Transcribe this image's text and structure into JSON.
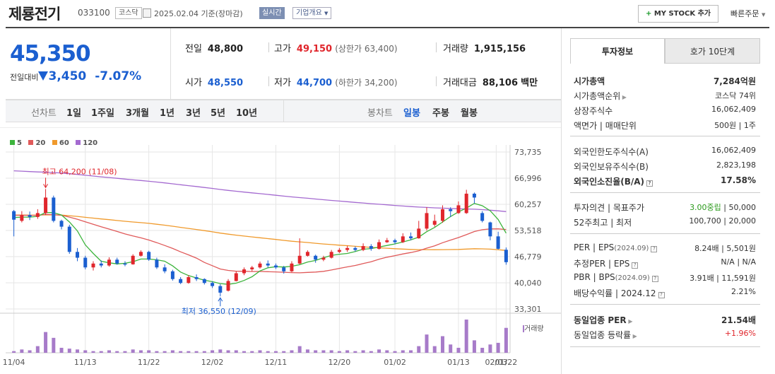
{
  "header": {
    "name": "제룡전기",
    "code": "033100",
    "market": "코스닥",
    "date": "2025.02.04",
    "date_note": "기준(장마감)",
    "live_label": "실시간",
    "corp_label": "기업개요",
    "mystock_label": "MY STOCK 추가",
    "fast_order": "빠른주문"
  },
  "quote": {
    "price": "45,350",
    "diff_label": "전일대비",
    "diff": "3,450",
    "rate": "-7.07%",
    "prev_label": "전일",
    "prev": "48,800",
    "high_label": "고가",
    "high": "49,150",
    "upper_label": "(상한가 63,400)",
    "volume_label": "거래량",
    "volume": "1,915,156",
    "open_label": "시가",
    "open": "48,550",
    "low_label": "저가",
    "low": "44,700",
    "lower_label": "(하한가 34,200)",
    "amount_label": "거래대금",
    "amount": "88,106",
    "amount_unit": "백만"
  },
  "periods": {
    "line_label": "선차트",
    "items": [
      "1일",
      "1주일",
      "3개월",
      "1년",
      "3년",
      "5년",
      "10년"
    ],
    "candle_label": "봉차트",
    "candle_items": [
      "일봉",
      "주봉",
      "월봉"
    ],
    "selected": "일봉"
  },
  "chart_data": {
    "type": "candlestick",
    "legend": [
      {
        "name": "5",
        "color": "#3cb43c"
      },
      {
        "name": "20",
        "color": "#e05a5a"
      },
      {
        "name": "60",
        "color": "#f09a2c"
      },
      {
        "name": "120",
        "color": "#a46ad0"
      }
    ],
    "y_ticks": [
      "73,735",
      "66,996",
      "60,257",
      "53,518",
      "46,779",
      "40,040",
      "33,301"
    ],
    "ylim": [
      33301,
      73735
    ],
    "x_ticks": [
      "11/04",
      "11/13",
      "11/22",
      "12/02",
      "12/11",
      "12/20",
      "01/02",
      "01/13",
      "01/22",
      "02/03"
    ],
    "annotations": {
      "high": "최고 64,200 (11/08)",
      "low": "최저 36,550 (12/09)"
    },
    "volume_label": "거래량",
    "candles": [
      [
        58500,
        56300,
        58800,
        52000
      ],
      [
        56000,
        57500,
        58500,
        55600
      ],
      [
        57500,
        57000,
        58400,
        56200
      ],
      [
        57000,
        58000,
        59000,
        56500
      ],
      [
        58000,
        62000,
        64200,
        57500
      ],
      [
        62000,
        56000,
        62500,
        55600
      ],
      [
        56000,
        54500,
        56300,
        53800
      ],
      [
        54500,
        48000,
        55000,
        47500
      ],
      [
        48000,
        46500,
        49000,
        45600
      ],
      [
        46500,
        44000,
        47000,
        43500
      ],
      [
        44000,
        45000,
        45600,
        43200
      ],
      [
        45000,
        44500,
        45800,
        44000
      ],
      [
        44500,
        46000,
        46600,
        44200
      ],
      [
        46000,
        45000,
        46500,
        44700
      ],
      [
        45000,
        44800,
        45600,
        44300
      ],
      [
        44800,
        47000,
        47400,
        44700
      ],
      [
        47000,
        48000,
        48400,
        46800
      ],
      [
        48000,
        46000,
        48300,
        45700
      ],
      [
        46000,
        44000,
        46500,
        43600
      ],
      [
        44000,
        43000,
        44800,
        42500
      ],
      [
        43000,
        41000,
        43400,
        40600
      ],
      [
        41000,
        40000,
        41500,
        39700
      ],
      [
        40000,
        41500,
        42000,
        39800
      ],
      [
        41500,
        41000,
        42200,
        40500
      ],
      [
        41000,
        40000,
        41200,
        39600
      ],
      [
        40000,
        39200,
        40400,
        38700
      ],
      [
        39200,
        37500,
        39700,
        36550
      ],
      [
        38000,
        40500,
        41000,
        37800
      ],
      [
        40500,
        42500,
        43000,
        40400
      ],
      [
        42500,
        43500,
        44000,
        42000
      ],
      [
        43500,
        44000,
        44400,
        43000
      ],
      [
        44000,
        45000,
        45500,
        43700
      ],
      [
        45000,
        44500,
        45800,
        44000
      ],
      [
        44500,
        44000,
        45000,
        43600
      ],
      [
        44000,
        43000,
        44400,
        42400
      ],
      [
        43000,
        45000,
        45600,
        42800
      ],
      [
        45000,
        47000,
        51500,
        44800
      ],
      [
        47000,
        48000,
        48400,
        46800
      ],
      [
        47000,
        46000,
        47300,
        45200
      ],
      [
        46000,
        46500,
        47000,
        45600
      ],
      [
        46500,
        48000,
        48500,
        46300
      ],
      [
        48000,
        48500,
        49000,
        47700
      ],
      [
        48500,
        49000,
        49600,
        48000
      ],
      [
        49000,
        48500,
        49400,
        48100
      ],
      [
        48500,
        49500,
        50200,
        48200
      ],
      [
        49500,
        48800,
        50000,
        48300
      ],
      [
        48800,
        50500,
        51200,
        48600
      ],
      [
        50500,
        51000,
        51600,
        50300
      ],
      [
        51000,
        50500,
        51400,
        50000
      ],
      [
        50500,
        52000,
        52800,
        50300
      ],
      [
        52000,
        51500,
        53000,
        51000
      ],
      [
        51500,
        54000,
        56000,
        51400
      ],
      [
        54000,
        58000,
        59500,
        53500
      ],
      [
        55000,
        56000,
        57600,
        54500
      ],
      [
        56000,
        59000,
        60000,
        55500
      ],
      [
        59000,
        58500,
        59500,
        57000
      ],
      [
        58000,
        60000,
        61000,
        57800
      ],
      [
        58000,
        63000,
        64000,
        57800
      ],
      [
        63000,
        62000,
        63300,
        60500
      ],
      [
        58000,
        56000,
        58500,
        55600
      ],
      [
        55600,
        52000,
        55800,
        51000
      ],
      [
        52000,
        48800,
        53200,
        48600
      ],
      [
        48550,
        45350,
        49150,
        44700
      ]
    ],
    "volumes": [
      2,
      4,
      3,
      8,
      25,
      18,
      6,
      5,
      4,
      3,
      2,
      2,
      3,
      2,
      2,
      4,
      3,
      3,
      2,
      2,
      3,
      2,
      2,
      2,
      2,
      3,
      4,
      3,
      3,
      2,
      2,
      3,
      2,
      2,
      2,
      3,
      8,
      4,
      3,
      3,
      3,
      2,
      3,
      2,
      3,
      2,
      4,
      3,
      2,
      3,
      3,
      8,
      22,
      8,
      20,
      10,
      6,
      40,
      15,
      6,
      10,
      12,
      30
    ]
  },
  "side": {
    "tab_on": "투자정보",
    "tab_off": "호가 10단계",
    "rows1": [
      {
        "k": "시가총액",
        "v": "7,284억원",
        "bold": true
      },
      {
        "k": "시가총액순위",
        "v": "코스닥 74위",
        "arrow": true
      },
      {
        "k": "상장주식수",
        "v": "16,062,409"
      },
      {
        "k": "액면가 | 매매단위",
        "v": "500원 | 1주"
      }
    ],
    "rows2": [
      {
        "k": "외국인한도주식수(A)",
        "v": "16,062,409"
      },
      {
        "k": "외국인보유주식수(B)",
        "v": "2,823,198"
      },
      {
        "k": "외국인소진율(B/A)",
        "v": "17.58%",
        "bold": true,
        "help": true
      }
    ],
    "rows3": [
      {
        "k": "투자의견 | 목표주가",
        "v1": "3.00중립",
        "v2": " | 50,000"
      },
      {
        "k": "52주최고 | 최저",
        "v": "100,700 | 20,000"
      }
    ],
    "rows4": [
      {
        "k": "PER | EPS",
        "kx": "(2024.09)",
        "v": "8.24배 | 5,501원",
        "help": true
      },
      {
        "k": "추정PER | EPS",
        "v": "N/A | N/A",
        "help": true
      },
      {
        "k": "PBR | BPS",
        "kx": "(2024.09)",
        "v": "3.91배 | 11,591원",
        "help": true
      },
      {
        "k": "배당수익률 | 2024.12",
        "v": "2.21%",
        "help": true
      }
    ],
    "rows5": [
      {
        "k": "동일업종 PER",
        "v": "21.54배",
        "bold": true,
        "arrow": true
      },
      {
        "k": "동일업종 등락률",
        "v": "+1.96%",
        "arrow": true,
        "red": true
      }
    ]
  }
}
